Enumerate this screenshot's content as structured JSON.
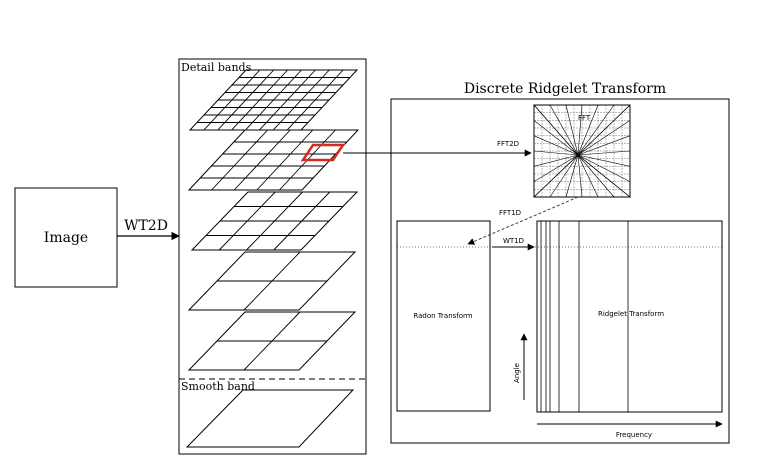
{
  "image_box": {
    "label": "Image"
  },
  "wt_arrow": {
    "label": "WT2D"
  },
  "bands_panel": {
    "detail_label": "Detail bands",
    "smooth_label": "Smooth band"
  },
  "ridgelet_panel": {
    "title": "Discrete Ridgelet Transform",
    "fft_label": "FFT",
    "fft2d_label": "FFT2D",
    "fft1d_label": "FFT1D",
    "wt1d_label": "WT1D",
    "radon_label": "Radon Transform",
    "ridgelet_label": "Ridgelet Transform",
    "angle_label": "Angle",
    "frequency_label": "Frequency"
  },
  "colors": {
    "line": "#000000",
    "highlight": "#d42a1f",
    "dashed": "#444444"
  }
}
